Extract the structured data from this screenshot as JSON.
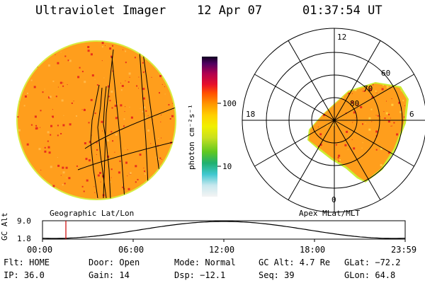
{
  "header": {
    "instrument": "Ultraviolet Imager",
    "date": "12 Apr 07",
    "time": "01:37:54 UT"
  },
  "colorbar": {
    "unit": "photon cm⁻²s⁻¹",
    "ticks": [
      "100",
      "10"
    ]
  },
  "left_panel": {
    "label": "Geographic Lat/Lon"
  },
  "right_panel": {
    "label": "Apex MLat/MLT",
    "mlt_labels": [
      "12",
      "18",
      "6",
      "0"
    ],
    "mlat_labels": [
      "60",
      "70",
      "80"
    ]
  },
  "timeline": {
    "ylabel": "GC Alt",
    "y_ticks": [
      "9.0",
      "1.8"
    ],
    "x_ticks": [
      "00:00",
      "06:00",
      "12:00",
      "18:00",
      "23:59"
    ]
  },
  "status": {
    "row1": {
      "filter": "Flt: HOME",
      "door": "Door: Open",
      "mode": "Mode: Normal",
      "gc_alt": "GC Alt: 4.7 Re",
      "glat": "GLat: −72.2"
    },
    "row2": {
      "ip": "IP: 36.0",
      "gain": "Gain: 14",
      "dsp": "Dsp:  −12.1",
      "seq": "Seq: 39",
      "glon": "GLon:  64.8"
    }
  },
  "colors": {
    "image_base": "#ff9e1c",
    "image_edge": "#ccee33",
    "speckle": "#e8301c",
    "current_time_marker": "#cc0000"
  }
}
